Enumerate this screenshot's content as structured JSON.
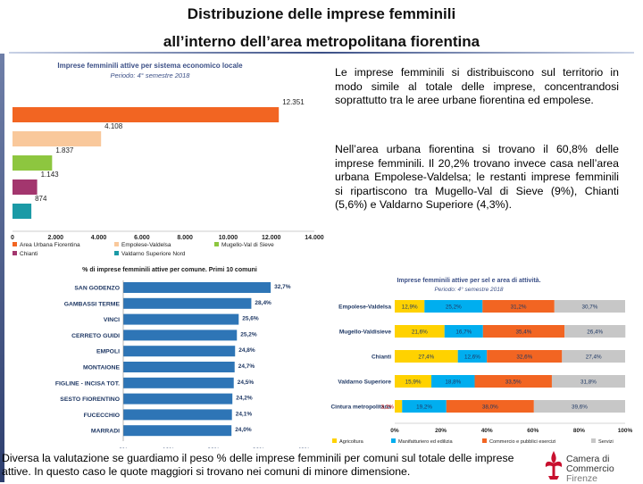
{
  "slide": {
    "title_line1": "Distribuzione delle imprese femminili",
    "title_line2": "all’interno dell’area metropolitana fiorentina",
    "paragraph1": "Le imprese femminili si  distribuiscono sul territorio in modo simile al totale delle imprese, concentrandosi soprattutto tra le aree urbane fiorentina ed empolese.",
    "paragraph2": "Nell’area urbana fiorentina si trovano il 60,8% delle imprese femminili. Il 20,2% trovano invece casa nell’area urbana Empolese-Valdelsa; le restanti imprese femminili si ripartiscono tra Mugello-Val di Sieve (9%), Chianti (5,6%) e Valdarno Superiore (4,3%).",
    "bottom_text": "Diversa la valutazione se guardiamo il peso % delle imprese femminili per comuni sul totale delle imprese attive. In questo caso le quote maggiori si trovano nei comuni di minore dimensione.",
    "logo_name": "Camera di Commercio",
    "logo_city": "Firenze"
  },
  "colors": {
    "orange": "#f26522",
    "peach": "#f9c89b",
    "green": "#8dc63f",
    "purple": "#a3366e",
    "teal": "#1b9aa6",
    "yellow": "#ffd200",
    "lightblue": "#00aeef",
    "grey": "#c7c7c7",
    "bluebar": "#2e75b6"
  },
  "chart_data": [
    {
      "type": "bar",
      "orientation": "horizontal",
      "title": "Imprese femminili attive per sistema economico locale",
      "subtitle": "Periodo: 4° semestre 2018",
      "categories": [
        "Area Urbana Fiorentina",
        "Empolese-Valdelsa",
        "Mugello-Val di Sieve",
        "Chianti",
        "Valdarno Superiore Nord"
      ],
      "values": [
        12351,
        4108,
        1837,
        1143,
        874
      ],
      "value_labels": [
        "12.351",
        "4.108",
        "1.837",
        "1.143",
        "874"
      ],
      "xlim": [
        0,
        14000
      ],
      "xticks": [
        "0",
        "2.000",
        "4.000",
        "6.000",
        "8.000",
        "10.000",
        "12.000",
        "14.000"
      ],
      "legend": [
        "Area Urbana Fiorentina",
        "Empolese-Valdelsa",
        "Mugello-Val di Sieve",
        "Chianti",
        "Valdarno Superiore Nord"
      ],
      "legend_position": "bottom"
    },
    {
      "type": "bar",
      "orientation": "horizontal",
      "title": "% di imprese femminili attive per comune. Primi 10 comuni",
      "categories": [
        "SAN GODENZO",
        "GAMBASSI TERME",
        "VINCI",
        "CERRETO GUIDI",
        "EMPOLI",
        "MONTAIONE",
        "FIGLINE - INCISA TOT.",
        "SESTO FIORENTINO",
        "FUCECCHIO",
        "MARRADI"
      ],
      "values": [
        32.7,
        28.4,
        25.6,
        25.2,
        24.8,
        24.7,
        24.5,
        24.2,
        24.1,
        24.0
      ],
      "value_labels": [
        "32,7%",
        "28,4%",
        "25,6%",
        "25,2%",
        "24,8%",
        "24,7%",
        "24,5%",
        "24,2%",
        "24,1%",
        "24,0%"
      ],
      "xlim": [
        0,
        40
      ],
      "xticks": [
        "0%",
        "10%",
        "20%",
        "30%",
        "40%"
      ]
    },
    {
      "type": "bar",
      "orientation": "horizontal",
      "stacked": true,
      "title": "Imprese femminili attive per sel e area di attività.",
      "subtitle": "Periodo: 4° semestre 2018",
      "categories": [
        "Empolese-Valdelsa",
        "Mugello-Valdisieve",
        "Chianti",
        "Valdarno Superiore",
        "Cintura metropolitana"
      ],
      "series": [
        {
          "name": "Agricoltura",
          "values": [
            12.9,
            21.6,
            27.4,
            15.9,
            3.2
          ],
          "labels": [
            "12,9%",
            "21,6%",
            "27,4%",
            "15,9%",
            "3,2%"
          ]
        },
        {
          "name": "Manifatturiero ed edilizia",
          "values": [
            25.2,
            16.7,
            12.6,
            18.8,
            19.2
          ],
          "labels": [
            "25,2%",
            "16,7%",
            "12,6%",
            "18,8%",
            "19,2%"
          ]
        },
        {
          "name": "Commercio e pubblici esercizi",
          "values": [
            31.2,
            35.4,
            32.6,
            33.5,
            38.0
          ],
          "labels": [
            "31,2%",
            "35,4%",
            "32,6%",
            "33,5%",
            "38,0%"
          ]
        },
        {
          "name": "Servizi",
          "values": [
            30.7,
            26.4,
            27.4,
            31.8,
            39.6
          ],
          "labels": [
            "30,7%",
            "26,4%",
            "27,4%",
            "31,8%",
            "39,6%"
          ]
        }
      ],
      "xlim": [
        0,
        100
      ],
      "xticks": [
        "0%",
        "20%",
        "40%",
        "60%",
        "80%",
        "100%"
      ],
      "legend_position": "bottom"
    }
  ]
}
